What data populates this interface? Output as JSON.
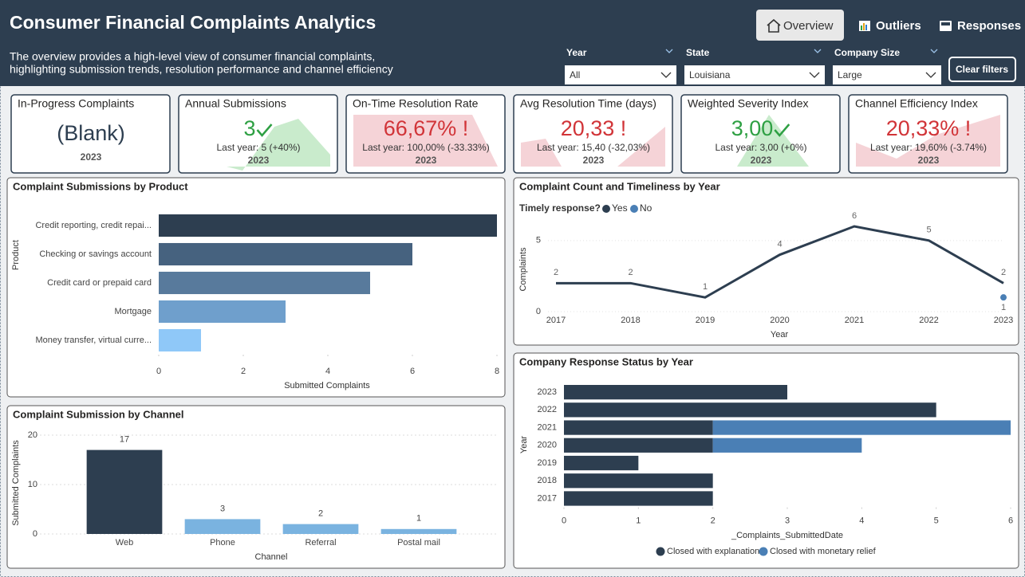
{
  "header": {
    "title": "Consumer Financial Complaints Analytics",
    "description": [
      "The overview provides a high-level view of consumer financial complaints,",
      "highlighting submission trends, resolution performance and channel efficiency"
    ]
  },
  "nav": [
    {
      "label": "Overview",
      "selected": true
    },
    {
      "label": "Outliers"
    },
    {
      "label": "Responses"
    }
  ],
  "filters": [
    {
      "label": "Year",
      "value": "All"
    },
    {
      "label": "State",
      "value": "Louisiana"
    },
    {
      "label": "Company Size",
      "value": "Large"
    }
  ],
  "clear_button": "Clear filters",
  "cards": [
    {
      "title": "In-Progress Complaints",
      "value": "(Blank)",
      "year": "2023"
    },
    {
      "title": "Annual Submissions",
      "value": "3",
      "status": "good",
      "comparison": "Last year: 5 (+40%)",
      "year": "2023"
    },
    {
      "title": "On-Time Resolution Rate",
      "value": "66,67% !",
      "status": "bad",
      "comparison": "Last year: 100,00% (-33.33%)",
      "year": "2023"
    },
    {
      "title": "Avg Resolution Time (days)",
      "value": "20,33 !",
      "status": "bad",
      "comparison": "Last year: 15,40 (-32,03%)",
      "year": "2023"
    },
    {
      "title": "Weighted Severity Index",
      "value": "3,00",
      "status": "good",
      "comparison": "Last year: 3,00 (+0%)",
      "year": "2023"
    },
    {
      "title": "Channel Efficiency Index",
      "value": "20,33% !",
      "status": "bad",
      "comparison": "Last year: 19,60% (-3.74%)",
      "year": "2023"
    }
  ],
  "chart_data": [
    {
      "type": "bar",
      "orientation": "horizontal",
      "title": "Complaint Submissions by Product",
      "x_label": "Submitted Complaints",
      "y_label": "Product",
      "categories": [
        "Credit reporting, credit repai...",
        "Checking or savings account",
        "Credit card or prepaid card",
        "Mortgage",
        "Money transfer, virtual curre..."
      ],
      "values": [
        8,
        6,
        5,
        3,
        1
      ],
      "colors": [
        "#2d3e50",
        "#46627f",
        "#587a9c",
        "#6f9fcc",
        "#8fc8f8"
      ],
      "xlim": [
        0,
        8
      ],
      "xticks": [
        0,
        2,
        4,
        6,
        8
      ]
    },
    {
      "type": "line",
      "title": "Complaint Count and Timeliness by Year",
      "x_label": "Year",
      "y_label": "Complaints",
      "legend_title": "Timely response?",
      "legend": "top-left",
      "x": [
        2017,
        2018,
        2019,
        2020,
        2021,
        2022,
        2023
      ],
      "series": [
        {
          "name": "Yes",
          "color": "#2d3e50",
          "values": [
            2,
            2,
            1,
            4,
            6,
            5,
            2
          ]
        },
        {
          "name": "No",
          "color": "#4a7fb5",
          "values": [
            null,
            null,
            null,
            null,
            null,
            null,
            1
          ]
        }
      ],
      "xlim": [
        2017,
        2023
      ],
      "xticks": [
        2017,
        2018,
        2019,
        2020,
        2021,
        2022,
        2023
      ],
      "ylim": [
        0,
        6
      ],
      "yticks": [
        0,
        5
      ],
      "grid": true
    },
    {
      "type": "bar",
      "orientation": "vertical",
      "title": "Complaint Submission by Channel",
      "x_label": "Channel",
      "y_label": "Submitted Complaints",
      "categories": [
        "Web",
        "Phone",
        "Referral",
        "Postal mail"
      ],
      "values": [
        17,
        3,
        2,
        1
      ],
      "colors": [
        "#2d3e50",
        "#7ab3e0",
        "#7ab3e0",
        "#7ab3e0"
      ],
      "ylim": [
        0,
        20
      ],
      "yticks": [
        0,
        10,
        20
      ],
      "grid": true
    },
    {
      "type": "bar",
      "orientation": "horizontal",
      "stacked": true,
      "title": "Company Response Status by Year",
      "x_label": "_Complaints_SubmittedDate",
      "y_label": "Year",
      "legend": "bottom",
      "categories": [
        "2023",
        "2022",
        "2021",
        "2020",
        "2019",
        "2018",
        "2017"
      ],
      "series": [
        {
          "name": "Closed with explanation",
          "color": "#2d3e50",
          "values": [
            3,
            5,
            2,
            2,
            1,
            2,
            2
          ]
        },
        {
          "name": "Closed with monetary relief",
          "color": "#4a7fb5",
          "values": [
            null,
            null,
            4,
            2,
            null,
            null,
            null
          ]
        }
      ],
      "xlim": [
        0,
        6
      ],
      "xticks": [
        0,
        1,
        2,
        3,
        4,
        5,
        6
      ]
    }
  ]
}
